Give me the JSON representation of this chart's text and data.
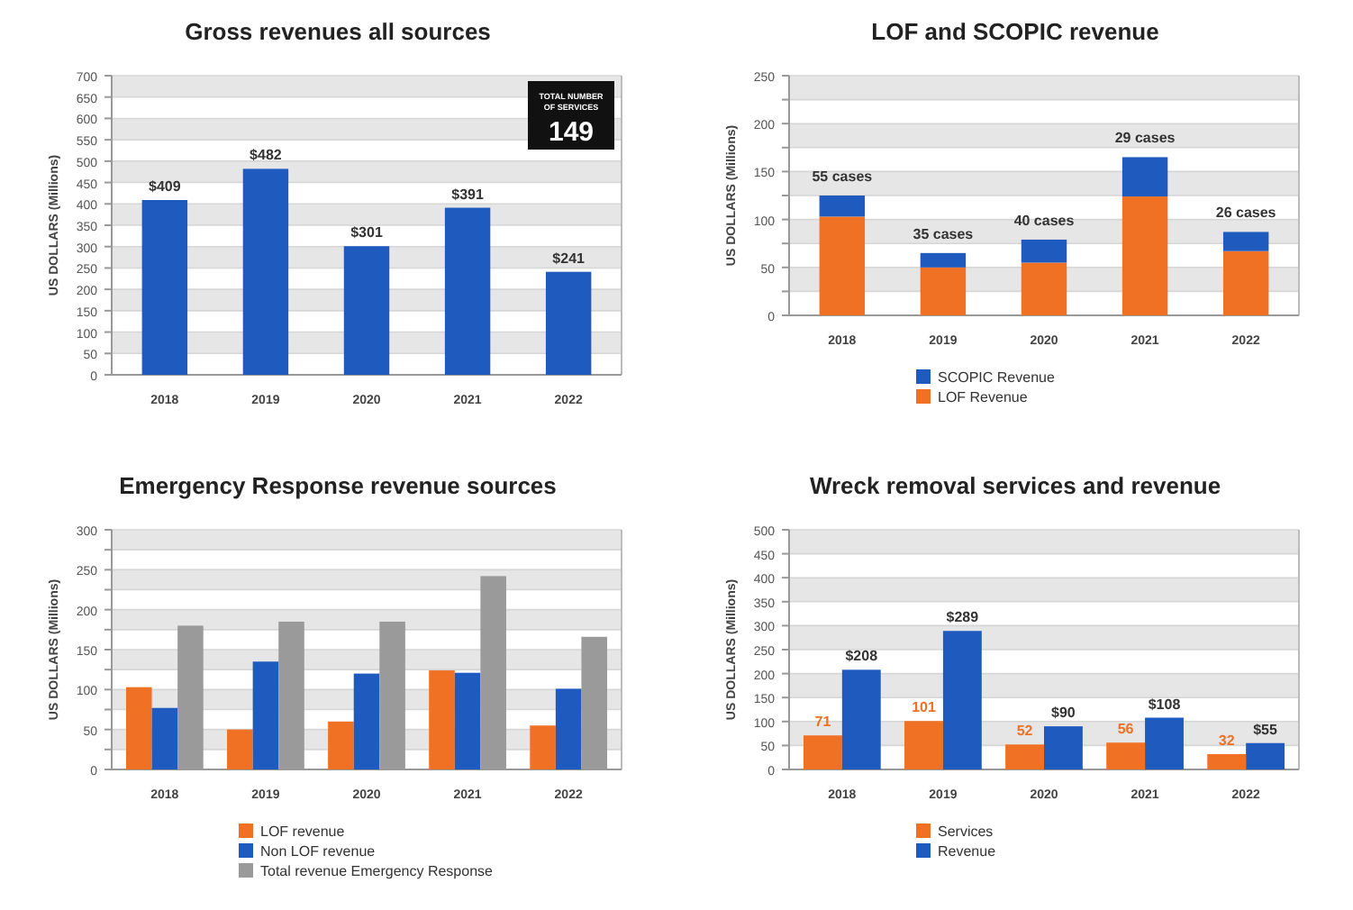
{
  "chart_data": [
    {
      "type": "bar",
      "title": "Gross revenues all sources",
      "ylabel": "US DOLLARS (Millions)",
      "categories": [
        "2018",
        "2019",
        "2020",
        "2021",
        "2022"
      ],
      "series": [
        {
          "color": "#1f5bbf",
          "values": [
            409,
            482,
            301,
            391,
            241
          ],
          "value_labels": [
            "$409",
            "$482",
            "$301",
            "$391",
            "$241"
          ]
        }
      ],
      "ylim": [
        0,
        700
      ],
      "yticks": [
        0,
        50,
        100,
        150,
        200,
        250,
        300,
        350,
        400,
        450,
        500,
        550,
        600,
        650,
        700
      ],
      "grid": "y",
      "legend": false,
      "annotations": [
        "TOTAL NUMBER OF SERVICES",
        "149"
      ]
    },
    {
      "type": "bar",
      "title": "LOF and SCOPIC revenue",
      "ylabel": "US DOLLARS (Millions)",
      "categories": [
        "2018",
        "2019",
        "2020",
        "2021",
        "2022"
      ],
      "stacked": true,
      "series": [
        {
          "name": "LOF Revenue",
          "color": "#f07024",
          "values": [
            103,
            50,
            55,
            124,
            67
          ]
        },
        {
          "name": "SCOPIC Revenue",
          "color": "#1f5bbf",
          "values": [
            22,
            15,
            24,
            41,
            20
          ]
        }
      ],
      "ylim": [
        0,
        250
      ],
      "yticks": [
        0,
        {
          "value": 25,
          "label": null
        },
        50,
        {
          "value": 75,
          "label": null
        },
        100,
        {
          "value": 125,
          "label": null
        },
        150,
        {
          "value": 175,
          "label": null
        },
        200,
        {
          "value": 225,
          "label": null
        },
        250
      ],
      "grid": "y",
      "legend": "bottom",
      "annotations": [
        {
          "text": "55 cases",
          "x": "2018",
          "y": 125
        },
        {
          "text": "35 cases",
          "x": "2019",
          "y": 65
        },
        {
          "text": "40 cases",
          "x": "2020",
          "y": 79
        },
        {
          "text": "29 cases",
          "x": "2021",
          "y": 165
        },
        {
          "text": "26 cases",
          "x": "2022",
          "y": 87
        }
      ]
    },
    {
      "type": "bar",
      "title": "Emergency Response revenue sources",
      "ylabel": "US DOLLARS (Millions)",
      "categories": [
        "2018",
        "2019",
        "2020",
        "2021",
        "2022"
      ],
      "series": [
        {
          "name": "LOF revenue",
          "color": "#f07024",
          "values": [
            103,
            50,
            60,
            124,
            55
          ]
        },
        {
          "name": "Non LOF revenue",
          "color": "#1f5bbf",
          "values": [
            77,
            135,
            120,
            121,
            101
          ]
        },
        {
          "name": "Total revenue Emergency Response",
          "color": "#9a9a9a",
          "values": [
            180,
            185,
            185,
            242,
            166
          ]
        }
      ],
      "ylim": [
        0,
        300
      ],
      "yticks": [
        0,
        {
          "value": 25,
          "label": null
        },
        50,
        {
          "value": 75,
          "label": null
        },
        100,
        {
          "value": 125,
          "label": null
        },
        150,
        {
          "value": 175,
          "label": null
        },
        200,
        {
          "value": 225,
          "label": null
        },
        250,
        {
          "value": 275,
          "label": null
        },
        300
      ],
      "grid": "y",
      "legend": "bottom"
    },
    {
      "type": "bar",
      "title": "Wreck removal services and revenue",
      "ylabel": "US DOLLARS (Millions)",
      "categories": [
        "2018",
        "2019",
        "2020",
        "2021",
        "2022"
      ],
      "series": [
        {
          "name": "Services",
          "color": "#f07024",
          "values": [
            71,
            101,
            52,
            56,
            32
          ],
          "value_labels": [
            "71",
            "101",
            "52",
            "56",
            "32"
          ]
        },
        {
          "name": "Revenue",
          "color": "#1f5bbf",
          "values": [
            208,
            289,
            90,
            108,
            55
          ],
          "value_labels": [
            "$208",
            "$289",
            "$90",
            "$108",
            "$55"
          ]
        }
      ],
      "ylim": [
        0,
        500
      ],
      "yticks": [
        0,
        50,
        100,
        150,
        200,
        250,
        300,
        350,
        400,
        450,
        500
      ],
      "grid": "y",
      "legend": "bottom"
    }
  ]
}
